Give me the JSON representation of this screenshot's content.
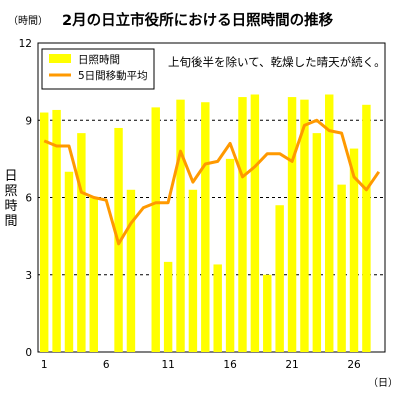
{
  "chart_data": {
    "type": "bar+line",
    "title": "2月の日立市役所における日照時間の推移",
    "y_unit_label": "（時間）",
    "x_unit_label": "（日）",
    "ylabel": "日照時間",
    "annotation": "上旬後半を除いて、乾燥した晴天が続く。",
    "ylim": [
      0,
      12
    ],
    "yticks": [
      0,
      3,
      6,
      9,
      12
    ],
    "grid": "horizontal-dashed",
    "legend_placement": "top-left",
    "x": [
      1,
      2,
      3,
      4,
      5,
      6,
      7,
      8,
      9,
      10,
      11,
      12,
      13,
      14,
      15,
      16,
      17,
      18,
      19,
      20,
      21,
      22,
      23,
      24,
      25,
      26,
      27,
      28
    ],
    "xtick_labels": [
      "1",
      "6",
      "11",
      "16",
      "21",
      "26"
    ],
    "series": [
      {
        "name": "日照時間",
        "kind": "bar",
        "color": "#ffff00",
        "values": [
          9.3,
          9.4,
          7.0,
          8.5,
          6.0,
          0.0,
          8.7,
          6.3,
          0.0,
          9.5,
          3.5,
          9.8,
          6.3,
          9.7,
          3.4,
          7.5,
          9.9,
          10.0,
          3.0,
          5.7,
          9.9,
          9.8,
          8.5,
          10.0,
          6.5,
          7.9,
          9.6,
          0.0
        ]
      },
      {
        "name": "5日間移動平均",
        "kind": "line",
        "color": "#ff9900",
        "values": [
          8.2,
          8.0,
          8.0,
          6.2,
          6.0,
          5.9,
          4.2,
          5.0,
          5.6,
          5.8,
          5.8,
          7.8,
          6.6,
          7.3,
          7.4,
          8.1,
          6.8,
          7.2,
          7.7,
          7.7,
          7.4,
          8.8,
          9.0,
          8.6,
          8.5,
          6.8,
          6.3,
          7.0
        ]
      }
    ]
  }
}
